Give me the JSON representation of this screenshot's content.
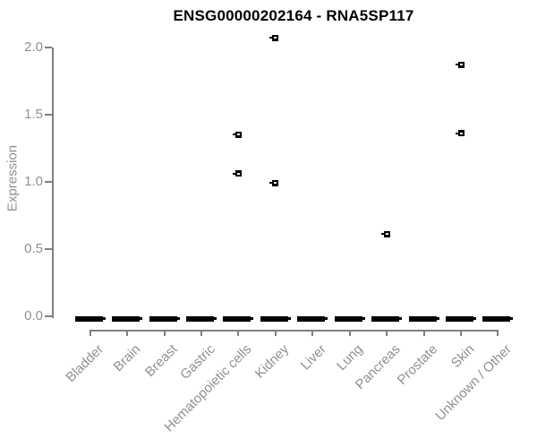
{
  "chart_data": {
    "type": "box",
    "title": "ENSG00000202164 - RNA5SP117",
    "ylabel": "Expression",
    "xlabel": "",
    "ylim": [
      0,
      2.0
    ],
    "y_ticks": [
      "0.0",
      "0.5",
      "1.0",
      "1.5",
      "2.0"
    ],
    "y_tick_values": [
      0,
      0.5,
      1.0,
      1.5,
      2.0
    ],
    "grid": false,
    "legend": null,
    "categories": [
      "Bladder",
      "Brain",
      "Breast",
      "Gastric",
      "Hematopoietic cells",
      "Kidney",
      "Liver",
      "Lung",
      "Pancreas",
      "Prostate",
      "Skin",
      "Unknown / Other"
    ],
    "boxes": [
      {
        "category": "Bladder",
        "median": 0,
        "q1": 0,
        "q3": 0,
        "outliers": []
      },
      {
        "category": "Brain",
        "median": 0,
        "q1": 0,
        "q3": 0,
        "outliers": []
      },
      {
        "category": "Breast",
        "median": 0,
        "q1": 0,
        "q3": 0,
        "outliers": []
      },
      {
        "category": "Gastric",
        "median": 0,
        "q1": 0,
        "q3": 0,
        "outliers": []
      },
      {
        "category": "Hematopoietic cells",
        "median": 0,
        "q1": 0,
        "q3": 0,
        "outliers": [
          1.35,
          1.06
        ]
      },
      {
        "category": "Kidney",
        "median": 0,
        "q1": 0,
        "q3": 0,
        "outliers": [
          2.07,
          0.99
        ]
      },
      {
        "category": "Liver",
        "median": 0,
        "q1": 0,
        "q3": 0,
        "outliers": []
      },
      {
        "category": "Lung",
        "median": 0,
        "q1": 0,
        "q3": 0,
        "outliers": []
      },
      {
        "category": "Pancreas",
        "median": 0,
        "q1": 0,
        "q3": 0,
        "outliers": [
          0.61
        ]
      },
      {
        "category": "Prostate",
        "median": 0,
        "q1": 0,
        "q3": 0,
        "outliers": []
      },
      {
        "category": "Skin",
        "median": 0,
        "q1": 0,
        "q3": 0,
        "outliers": [
          1.87,
          1.36
        ]
      },
      {
        "category": "Unknown / Other",
        "median": 0,
        "q1": 0,
        "q3": 0,
        "outliers": []
      }
    ],
    "colors": {
      "box": "#000000",
      "outlier_fill": "#000000",
      "outlier_dash": "#ffffff",
      "axis": "#808080",
      "tick_label": "#909090",
      "title": "#000000",
      "background": "#ffffff"
    }
  }
}
